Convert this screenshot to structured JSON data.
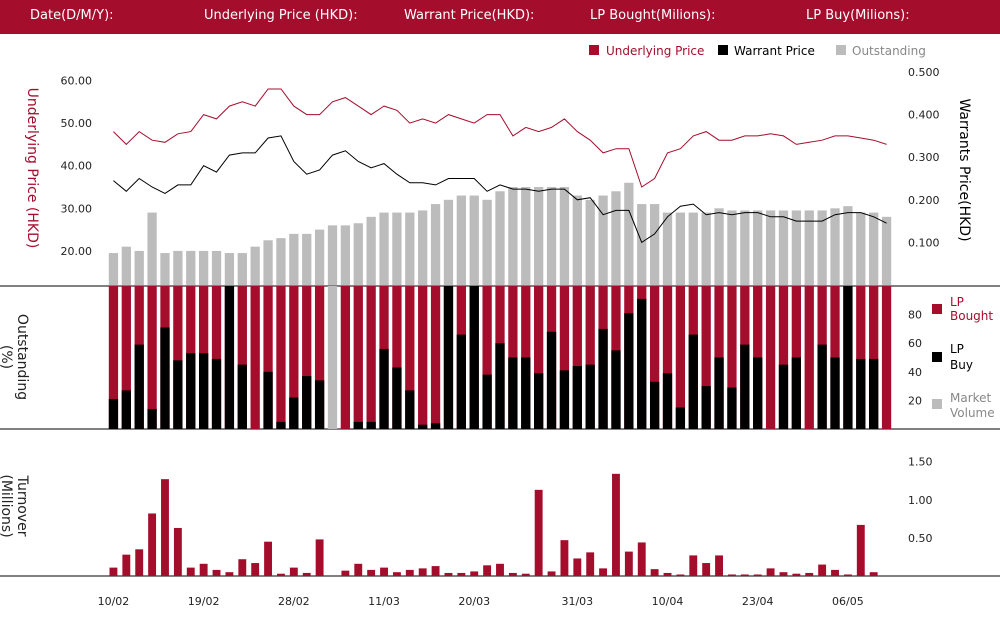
{
  "header": {
    "date_label": "Date(D/M/Y):",
    "underlying_label": "Underlying Price (HKD):",
    "warrant_label": "Warrant  Price(HKD):",
    "lp_bought_label": "LP Bought(Milions):",
    "lp_buy_label": "LP Buy(Milions):"
  },
  "colors": {
    "accent": "#a50d2d",
    "black": "#000000",
    "grey": "#bcbcbc"
  },
  "chart_data": [
    {
      "type": "bar",
      "legend": {
        "underlying": "Underlying Price",
        "warrant": "Warrant  Price",
        "outstanding": "Outstanding"
      },
      "ylabel_left": "Underlying Price (HKD)",
      "ylabel_right": "Warrants  Price(HKD)",
      "yticks_left": [
        "60.00",
        "50.00",
        "40.00",
        "30.00",
        "20.00"
      ],
      "yticks_right": [
        "0.500",
        "0.400",
        "0.300",
        "0.200",
        "0.100"
      ],
      "ylim_left": [
        12,
        62
      ],
      "ylim_right": [
        0.0,
        0.5
      ],
      "underlying": [
        48,
        45,
        48,
        46,
        45.5,
        47.5,
        48,
        52,
        51,
        54,
        55,
        54,
        58,
        58,
        54,
        52,
        52,
        55,
        56,
        54,
        52,
        54,
        53,
        50,
        51,
        50,
        52,
        51,
        50,
        52,
        52,
        47,
        49,
        48,
        49,
        51,
        48,
        46,
        43,
        44,
        44,
        35,
        37,
        43,
        44,
        47,
        48,
        46,
        46,
        47,
        47,
        47.5,
        47,
        45,
        45.5,
        46,
        47,
        47,
        46.5,
        46,
        45
      ],
      "warrant": [
        0.245,
        0.22,
        0.25,
        0.23,
        0.215,
        0.235,
        0.235,
        0.28,
        0.265,
        0.305,
        0.31,
        0.31,
        0.345,
        0.35,
        0.29,
        0.26,
        0.27,
        0.305,
        0.315,
        0.29,
        0.275,
        0.285,
        0.26,
        0.24,
        0.24,
        0.235,
        0.25,
        0.25,
        0.25,
        0.22,
        0.235,
        0.225,
        0.225,
        0.22,
        0.225,
        0.225,
        0.2,
        0.205,
        0.165,
        0.175,
        0.175,
        0.1,
        0.12,
        0.16,
        0.185,
        0.19,
        0.165,
        0.17,
        0.165,
        0.17,
        0.17,
        0.16,
        0.16,
        0.15,
        0.15,
        0.15,
        0.165,
        0.17,
        0.17,
        0.16,
        0.145
      ],
      "outstanding": [
        19.5,
        21,
        20,
        29,
        19.5,
        20,
        20,
        20,
        20,
        19.5,
        19.5,
        21,
        22.5,
        23,
        24,
        24,
        25,
        26,
        26,
        26.5,
        28,
        29,
        29,
        29,
        29.5,
        31,
        32,
        33,
        33,
        32,
        34,
        35,
        35,
        35,
        35,
        35,
        33,
        32,
        33,
        34,
        36,
        31,
        31,
        29,
        29,
        29,
        29,
        30,
        29.5,
        29.5,
        29.5,
        29.5,
        29.5,
        29.5,
        29.5,
        29.5,
        30,
        30.5,
        29,
        29,
        28
      ],
      "xticks": [
        "10/02",
        "19/02",
        "28/02",
        "11/03",
        "20/03",
        "31/03",
        "10/04",
        "23/04",
        "06/05"
      ]
    },
    {
      "type": "bar",
      "ylabel": "Outstanding (%)",
      "yticks": [
        "80",
        "60",
        "40",
        "20"
      ],
      "ylim": [
        0,
        100
      ],
      "legend": {
        "lp_bought": "LP Bought",
        "lp_buy": "LP Buy",
        "market_volume": "Market Volume"
      },
      "lp_bought": [
        100,
        100,
        100,
        100,
        100,
        100,
        100,
        100,
        100,
        100,
        100,
        100,
        100,
        100,
        100,
        100,
        100,
        100,
        100,
        100,
        100,
        100,
        100,
        100,
        100,
        100,
        100,
        100,
        100,
        100,
        100,
        100,
        100,
        100,
        100,
        100,
        100,
        100,
        100,
        100,
        100,
        100,
        100,
        100,
        100,
        100,
        100,
        100,
        100,
        100,
        100,
        100,
        100,
        100,
        100,
        100,
        100,
        100,
        100,
        100,
        100
      ],
      "lp_buy": [
        21,
        27,
        59,
        14,
        71,
        48,
        53,
        53,
        49,
        100,
        45,
        0,
        40,
        5,
        22,
        37,
        34,
        0,
        0,
        5,
        5,
        56,
        43,
        27,
        3,
        4,
        100,
        66,
        100,
        38,
        60,
        50,
        50,
        39,
        68,
        41,
        44,
        45,
        70,
        55,
        81,
        91,
        33,
        39,
        15,
        66,
        30,
        50,
        29,
        59,
        50,
        0,
        45,
        50,
        0,
        59,
        50,
        100,
        49,
        49,
        0
      ],
      "market_volume": [
        0,
        0,
        0,
        0,
        0,
        7,
        0,
        0,
        0,
        0,
        0,
        0,
        0,
        0,
        0,
        0,
        0,
        100,
        0,
        0,
        0,
        0,
        0,
        0,
        0,
        0,
        0,
        0,
        0,
        0,
        0,
        0,
        0,
        0,
        2,
        0,
        0,
        0,
        0,
        0,
        0,
        2,
        0,
        0,
        0,
        7,
        2,
        0,
        0,
        0,
        0,
        0,
        0,
        0,
        0,
        0,
        0,
        0,
        0,
        0,
        0
      ]
    },
    {
      "type": "bar",
      "ylabel": "Turnover (Millions)",
      "yticks": [
        "1.50",
        "1.00",
        "0.50"
      ],
      "ylim": [
        0,
        1.6
      ],
      "turnover": [
        0.11,
        0.28,
        0.35,
        0.82,
        1.27,
        0.63,
        0.11,
        0.16,
        0.08,
        0.05,
        0.22,
        0.17,
        0.45,
        0.03,
        0.11,
        0.04,
        0.48,
        0.0,
        0.07,
        0.16,
        0.08,
        0.11,
        0.05,
        0.08,
        0.1,
        0.13,
        0.04,
        0.04,
        0.06,
        0.14,
        0.16,
        0.04,
        0.03,
        1.13,
        0.06,
        0.47,
        0.23,
        0.31,
        0.1,
        1.34,
        0.32,
        0.44,
        0.09,
        0.04,
        0.02,
        0.27,
        0.17,
        0.27,
        0.02,
        0.02,
        0.02,
        0.1,
        0.05,
        0.03,
        0.04,
        0.15,
        0.08,
        0.02,
        0.67,
        0.05,
        0.0
      ]
    }
  ]
}
